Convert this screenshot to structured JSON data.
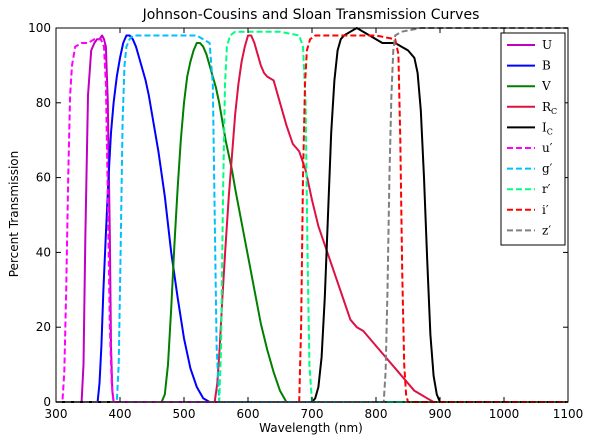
{
  "chart_data": {
    "type": "line",
    "title": "Johnson-Cousins and Sloan Transmission Curves",
    "xlabel": "Wavelength (nm)",
    "ylabel": "Percent Transmission",
    "xlim": [
      300,
      1100
    ],
    "ylim": [
      0,
      100
    ],
    "xticks": [
      300,
      400,
      500,
      600,
      700,
      800,
      900,
      1000,
      1100
    ],
    "yticks": [
      0,
      20,
      40,
      60,
      80,
      100
    ],
    "grid": false,
    "legend_position": "top-right",
    "series": [
      {
        "name": "U",
        "label_main": "U",
        "label_sub": "",
        "color": "#bf00bf",
        "dash": "solid",
        "x": [
          300,
          340,
          343,
          346,
          350,
          355,
          360,
          364,
          368,
          372,
          375,
          378,
          381,
          384,
          386,
          388,
          390,
          1100
        ],
        "y": [
          0,
          0,
          10,
          45,
          82,
          94,
          96,
          97,
          97,
          98,
          97,
          95,
          80,
          45,
          15,
          3,
          0,
          0
        ]
      },
      {
        "name": "B",
        "label_main": "B",
        "label_sub": "",
        "color": "#0000ff",
        "dash": "solid",
        "x": [
          300,
          365,
          368,
          371,
          374,
          378,
          382,
          386,
          390,
          395,
          400,
          405,
          410,
          415,
          420,
          425,
          430,
          435,
          440,
          445,
          450,
          460,
          470,
          480,
          490,
          500,
          510,
          520,
          530,
          540,
          1100
        ],
        "y": [
          0,
          0,
          5,
          15,
          30,
          45,
          60,
          72,
          80,
          87,
          92,
          96,
          98,
          98,
          97,
          95,
          92,
          89,
          86,
          82,
          77,
          67,
          55,
          40,
          28,
          17,
          9,
          4,
          1,
          0,
          0
        ]
      },
      {
        "name": "V",
        "label_main": "V",
        "label_sub": "",
        "color": "#007f00",
        "dash": "solid",
        "x": [
          300,
          465,
          470,
          475,
          480,
          485,
          490,
          495,
          500,
          505,
          510,
          515,
          520,
          525,
          530,
          535,
          540,
          545,
          550,
          555,
          560,
          565,
          570,
          575,
          580,
          590,
          600,
          610,
          620,
          630,
          640,
          650,
          660,
          1100
        ],
        "y": [
          0,
          0,
          2,
          10,
          25,
          42,
          57,
          70,
          80,
          87,
          91,
          94,
          96,
          96,
          95,
          93,
          90,
          87,
          84,
          80,
          75,
          70,
          66,
          62,
          57,
          48,
          39,
          30,
          21,
          14,
          8,
          3,
          0,
          0
        ]
      },
      {
        "name": "R_C",
        "label_main": "R",
        "label_sub": "C",
        "color": "#dd1144",
        "dash": "solid",
        "x": [
          300,
          548,
          552,
          556,
          560,
          565,
          570,
          575,
          580,
          585,
          590,
          595,
          600,
          605,
          610,
          615,
          620,
          625,
          630,
          640,
          650,
          660,
          670,
          680,
          690,
          700,
          710,
          720,
          730,
          740,
          750,
          760,
          770,
          780,
          790,
          800,
          810,
          820,
          830,
          840,
          850,
          860,
          870,
          880,
          890,
          900,
          1100
        ],
        "y": [
          0,
          0,
          5,
          15,
          28,
          42,
          55,
          66,
          77,
          85,
          91,
          95,
          98,
          98,
          96,
          93,
          90,
          88,
          87,
          86,
          80,
          74,
          69,
          67,
          62,
          54,
          47,
          42,
          37,
          32,
          27,
          22,
          20,
          19,
          17,
          15,
          13,
          11,
          9,
          7,
          5,
          3,
          2,
          1,
          0,
          0,
          0
        ]
      },
      {
        "name": "I_C",
        "label_main": "I",
        "label_sub": "C",
        "color": "#000000",
        "dash": "solid",
        "x": [
          300,
          700,
          705,
          710,
          715,
          720,
          725,
          730,
          735,
          740,
          745,
          750,
          760,
          770,
          780,
          790,
          800,
          810,
          820,
          830,
          840,
          850,
          860,
          865,
          870,
          875,
          880,
          885,
          890,
          895,
          900,
          1100
        ],
        "y": [
          0,
          0,
          1,
          4,
          12,
          28,
          50,
          72,
          86,
          94,
          97,
          98,
          99,
          100,
          99,
          98,
          97,
          96,
          96,
          96,
          95,
          94,
          92,
          88,
          78,
          60,
          38,
          18,
          7,
          2,
          0,
          0
        ]
      },
      {
        "name": "u'",
        "label_main": "u′",
        "label_sub": "",
        "color": "#ff00ff",
        "dash": "dashed",
        "x": [
          300,
          310,
          313,
          316,
          319,
          322,
          325,
          330,
          340,
          350,
          360,
          370,
          375,
          378,
          381,
          384,
          387,
          390,
          1100
        ],
        "y": [
          0,
          0,
          8,
          30,
          60,
          82,
          90,
          95,
          96,
          96,
          97,
          97,
          95,
          85,
          55,
          20,
          5,
          0,
          0
        ]
      },
      {
        "name": "g'",
        "label_main": "g′",
        "label_sub": "",
        "color": "#00bfff",
        "dash": "dashed",
        "x": [
          300,
          395,
          398,
          401,
          404,
          407,
          410,
          415,
          420,
          430,
          450,
          480,
          520,
          540,
          545,
          548,
          551,
          555,
          1100
        ],
        "y": [
          0,
          0,
          10,
          40,
          75,
          90,
          95,
          97,
          98,
          98,
          98,
          98,
          98,
          96,
          85,
          50,
          15,
          0,
          0
        ]
      },
      {
        "name": "r'",
        "label_main": "r′",
        "label_sub": "",
        "color": "#00ff7f",
        "dash": "dashed",
        "x": [
          300,
          555,
          558,
          561,
          564,
          567,
          572,
          580,
          600,
          650,
          680,
          686,
          690,
          693,
          696,
          700,
          1100
        ],
        "y": [
          0,
          0,
          15,
          55,
          85,
          95,
          98,
          99,
          99,
          99,
          98,
          95,
          80,
          40,
          10,
          0,
          0
        ]
      },
      {
        "name": "i'",
        "label_main": "i′",
        "label_sub": "",
        "color": "#ff0000",
        "dash": "dashed",
        "x": [
          300,
          680,
          683,
          686,
          689,
          692,
          697,
          705,
          720,
          760,
          800,
          830,
          835,
          838,
          841,
          844,
          847,
          850,
          1100
        ],
        "y": [
          0,
          0,
          20,
          60,
          85,
          94,
          97,
          98,
          98,
          98,
          98,
          97,
          93,
          70,
          35,
          10,
          2,
          0,
          0
        ]
      },
      {
        "name": "z'",
        "label_main": "z′",
        "label_sub": "",
        "color": "#7f7f7f",
        "dash": "dashed",
        "x": [
          300,
          812,
          815,
          818,
          821,
          824,
          827,
          830,
          840,
          870,
          950,
          1050,
          1100
        ],
        "y": [
          0,
          0,
          8,
          30,
          60,
          82,
          94,
          98,
          99,
          100,
          100,
          100,
          100
        ]
      }
    ]
  }
}
